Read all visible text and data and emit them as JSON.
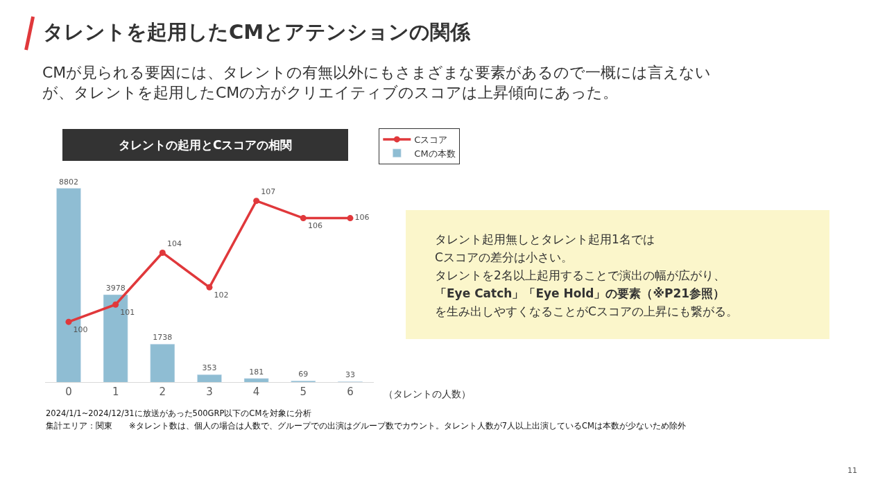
{
  "chart_data": {
    "type": "bar",
    "title": "タレントを起用したCMとアテンションの関係",
    "subtitle": "CMが見られる要因には、タレントの有無以外にもさまざまな要素があるので一概には言えないが、タレントを起用したCMの方がクリエイティブのスコアは上昇傾向にあった。",
    "categories": [
      "0",
      "1",
      "2",
      "3",
      "4",
      "5",
      "6"
    ],
    "xlabel": "（タレントの人数）",
    "series": [
      {
        "name": "Cスコア",
        "type": "line",
        "axis": "y2",
        "color": "#e0383b",
        "values": [
          100,
          101,
          104,
          102,
          107,
          106,
          106
        ]
      },
      {
        "name": "CMの本数",
        "color": "#8fbdd3",
        "values": [
          8802,
          3978,
          1738,
          353,
          181,
          69,
          33
        ]
      }
    ],
    "marker": "circle",
    "line_style": "solid",
    "data_labels": true,
    "legend": "top right",
    "annotations": [
      "タレントの起用とCスコアの相関",
      "タレント起用無しとタレント起用1名では",
      "Cスコアの差分は小さい。",
      "タレントを2名以上起用することで演出の幅が広がり、",
      "「Eye Catch」「Eye Hold」の要素（※P21参照）",
      "を生み出しやすくなることがCスコアの上昇にも繋がる。",
      "2024/1/1~2024/12/31に放送があった500GRP以下のCMを対象に分析",
      "集計エリア：関東　　※タレント数は、個人の場合は人数で、グループでの出演はグループ数でカウント。タレント人数が7人以上出演しているCMは本数が少ないため除外",
      "11"
    ]
  }
}
